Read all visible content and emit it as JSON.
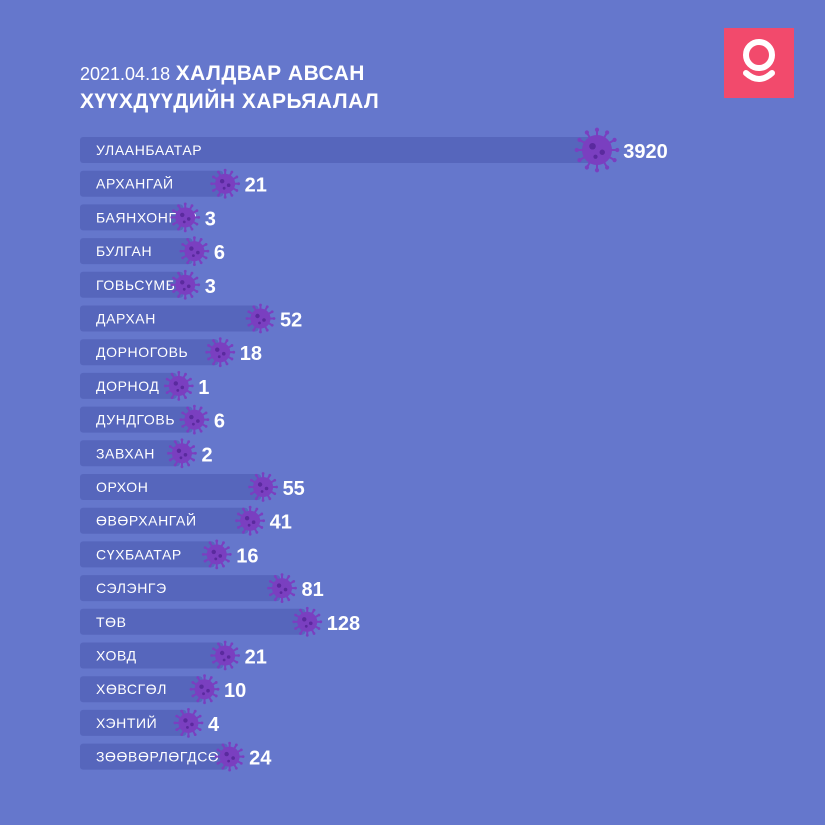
{
  "title": {
    "date": "2021.04.18",
    "line1_rest": "ХАЛДВАР АВСАН",
    "line2": "ХҮҮХДҮҮДИЙН ХАРЬЯАЛАЛ"
  },
  "logo": {
    "letter": "g",
    "color": "#f24a6c"
  },
  "colors": {
    "background": "#6577cc",
    "bar": "#5666bc",
    "virus": "#7a3fc0",
    "virus_dark": "#5a2a9e"
  },
  "chart_data": {
    "type": "bar",
    "orientation": "horizontal",
    "title": "2021.04.18 ХАЛДВАР АВСАН ХҮҮХДҮҮДИЙН ХАРЬЯАЛАЛ",
    "categories": [
      "УЛААНБААТАР",
      "АРХАНГАЙ",
      "БАЯНХОНГОР",
      "БУЛГАН",
      "ГОВЬСҮМБЭР",
      "ДАРХАН",
      "ДОРНОГОВЬ",
      "ДОРНОД",
      "ДУНДГОВЬ",
      "ЗАВХАН",
      "ОРХОН",
      "ӨВӨРХАНГАЙ",
      "СҮХБААТАР",
      "СЭЛЭНГЭ",
      "ТӨВ",
      "ХОВД",
      "ХӨВСГӨЛ",
      "ХЭНТИЙ",
      "ЗӨӨВӨРЛӨГДСӨН"
    ],
    "values": [
      3920,
      21,
      3,
      6,
      3,
      52,
      18,
      1,
      6,
      2,
      55,
      41,
      16,
      81,
      128,
      21,
      10,
      4,
      24
    ],
    "value_labels": [
      "3920",
      "21",
      "3",
      "6",
      "3",
      "52",
      "18",
      "1",
      "6",
      "2",
      "55",
      "41",
      "16",
      "81",
      "128",
      "21",
      "10",
      "4",
      "24"
    ],
    "marker": "virus-icon",
    "scale": "non-linear"
  }
}
